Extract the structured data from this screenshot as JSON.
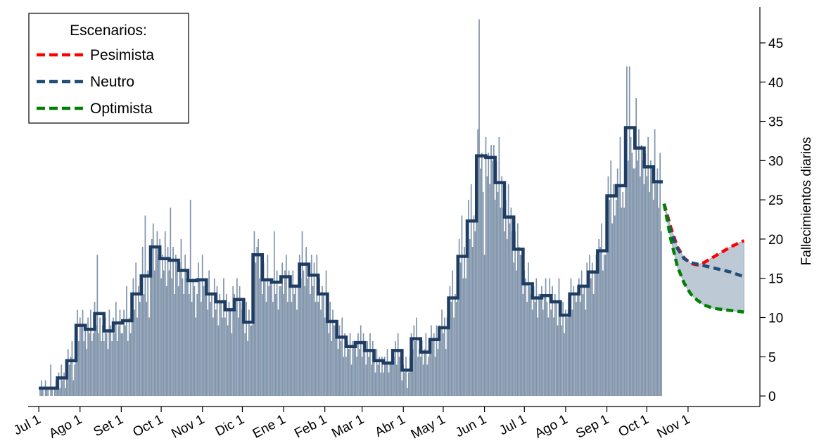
{
  "chart_data": {
    "type": "bar",
    "y_label": "Fallecimientos diarios",
    "xlim": [
      -8,
      542
    ],
    "xticks": [
      {
        "value": 0,
        "label": "Jul 1"
      },
      {
        "value": 31,
        "label": "Ago 1"
      },
      {
        "value": 62,
        "label": "Set 1"
      },
      {
        "value": 92,
        "label": "Oct 1"
      },
      {
        "value": 123,
        "label": "Nov 1"
      },
      {
        "value": 153,
        "label": "Dic 1"
      },
      {
        "value": 184,
        "label": "Ene 1"
      },
      {
        "value": 215,
        "label": "Feb 1"
      },
      {
        "value": 243,
        "label": "Mar 1"
      },
      {
        "value": 274,
        "label": "Abr 1"
      },
      {
        "value": 304,
        "label": "May 1"
      },
      {
        "value": 335,
        "label": "Jun 1"
      },
      {
        "value": 365,
        "label": "Jul 1"
      },
      {
        "value": 396,
        "label": "Ago 1"
      },
      {
        "value": 427,
        "label": "Sep 1"
      },
      {
        "value": 457,
        "label": "Oct 1"
      },
      {
        "value": 488,
        "label": "Nov 1"
      }
    ],
    "ylim": [
      -1.34,
      49.57
    ],
    "yticks": [
      0,
      5,
      10,
      15,
      20,
      25,
      30,
      35,
      40,
      45
    ],
    "bar_color": "#8094ab",
    "line_color": "#1f3d63",
    "band_color": "#b3c0cf",
    "daily": [
      0,
      1,
      2,
      1,
      0,
      2,
      1,
      1,
      0,
      4,
      1,
      0,
      1,
      2,
      2,
      3,
      1,
      4,
      2,
      3,
      1,
      3,
      6,
      4,
      5,
      7,
      2,
      4,
      8,
      11,
      7,
      10,
      9,
      11,
      7,
      9,
      6,
      10,
      8,
      11,
      7,
      8,
      12,
      9,
      18,
      8,
      10,
      7,
      9,
      7,
      10,
      8,
      6,
      11,
      9,
      7,
      10,
      8,
      12,
      7,
      9,
      11,
      8,
      8,
      11,
      9,
      14,
      7,
      10,
      8,
      12,
      15,
      11,
      17,
      10,
      14,
      12,
      14,
      19,
      13,
      23,
      12,
      16,
      10,
      17,
      20,
      22,
      16,
      19,
      21,
      18,
      20,
      15,
      18,
      16,
      21,
      14,
      19,
      16,
      24,
      15,
      19,
      13,
      18,
      16,
      14,
      17,
      20,
      15,
      13,
      18,
      15,
      16,
      13,
      25,
      12,
      15,
      14,
      10,
      13,
      17,
      15,
      12,
      18,
      14,
      15,
      14,
      11,
      16,
      12,
      13,
      10,
      15,
      11,
      14,
      9,
      13,
      12,
      10,
      15,
      10,
      13,
      9,
      12,
      11,
      8,
      14,
      13,
      11,
      15,
      10,
      14,
      12,
      11,
      10,
      8,
      12,
      7,
      11,
      9,
      9,
      16,
      21,
      17,
      19,
      20,
      15,
      18,
      13,
      17,
      15,
      12,
      18,
      14,
      15,
      15,
      12,
      21,
      13,
      16,
      11,
      14,
      14,
      17,
      13,
      16,
      18,
      12,
      16,
      15,
      12,
      16,
      13,
      14,
      11,
      17,
      18,
      15,
      21,
      16,
      14,
      19,
      15,
      16,
      13,
      18,
      14,
      17,
      12,
      18,
      12,
      15,
      11,
      14,
      13,
      10,
      16,
      10,
      8,
      12,
      7,
      11,
      9,
      9,
      8,
      6,
      9,
      7,
      10,
      5,
      8,
      5,
      7,
      6,
      8,
      4,
      7,
      7,
      7,
      5,
      8,
      6,
      9,
      5,
      8,
      6,
      4,
      7,
      5,
      8,
      4,
      7,
      5,
      3,
      6,
      4,
      5,
      3,
      5,
      3,
      5,
      4,
      6,
      3,
      4,
      4,
      6,
      5,
      7,
      4,
      8,
      5,
      6,
      2,
      4,
      3,
      5,
      1,
      3,
      5,
      8,
      6,
      9,
      7,
      10,
      5,
      6,
      5,
      7,
      4,
      6,
      8,
      4,
      5,
      6,
      9,
      7,
      8,
      5,
      9,
      6,
      9,
      7,
      11,
      8,
      10,
      6,
      10,
      11,
      14,
      12,
      16,
      10,
      13,
      12,
      16,
      20,
      17,
      23,
      15,
      19,
      15,
      21,
      25,
      20,
      27,
      19,
      23,
      21,
      28,
      34,
      48,
      29,
      31,
      26,
      18,
      33,
      28,
      31,
      27,
      32,
      30,
      32,
      25,
      30,
      26,
      33,
      24,
      28,
      24,
      21,
      25,
      20,
      27,
      22,
      24,
      21,
      17,
      21,
      16,
      22,
      19,
      18,
      18,
      13,
      16,
      15,
      12,
      17,
      14,
      13,
      11,
      14,
      12,
      15,
      10,
      13,
      13,
      14,
      11,
      13,
      15,
      12,
      10,
      15,
      11,
      14,
      10,
      13,
      12,
      9,
      15,
      11,
      9,
      12,
      8,
      11,
      10,
      11,
      12,
      15,
      11,
      14,
      13,
      12,
      14,
      15,
      12,
      16,
      13,
      14,
      11,
      17,
      14,
      18,
      15,
      17,
      13,
      16,
      18,
      17,
      20,
      19,
      22,
      16,
      18,
      18,
      23,
      28,
      25,
      30,
      22,
      27,
      23,
      25,
      29,
      27,
      33,
      24,
      26,
      24,
      32,
      42,
      30,
      42,
      33,
      31,
      29,
      29,
      38,
      30,
      34,
      28,
      32,
      30,
      27,
      31,
      28,
      33,
      26,
      30,
      29,
      25,
      34,
      27,
      29,
      24,
      31,
      21
    ],
    "weekly": [
      1,
      1,
      2.3,
      4.5,
      9,
      8.5,
      10.5,
      8.3,
      9.3,
      9.6,
      13,
      15.3,
      19,
      17.5,
      17.3,
      16,
      14.7,
      14.8,
      13,
      12,
      11,
      12.3,
      9.4,
      18,
      14.8,
      14.5,
      15.2,
      14,
      16.8,
      15.4,
      13,
      9.5,
      7.5,
      6.3,
      6.8,
      5.8,
      4.5,
      4.2,
      5.8,
      3.3,
      7.3,
      5.6,
      7.2,
      8.7,
      12.5,
      17.8,
      22.3,
      30.6,
      30.4,
      27.2,
      22.8,
      18.7,
      14.3,
      12.5,
      12.8,
      12,
      10.3,
      13,
      14,
      15.8,
      18.5,
      25.5,
      26.8,
      34.2,
      31.6,
      29.2,
      27.3
    ],
    "legend_title": "Escenarios:",
    "legend_position": "upper left",
    "forecast_x": [
      470,
      475,
      480,
      485,
      490,
      495,
      500,
      505,
      510,
      515,
      520,
      525,
      530
    ],
    "series": [
      {
        "name": "Pesimista",
        "color": "#ff0000",
        "values": [
          24.5,
          21.5,
          19,
          17.6,
          16.9,
          16.7,
          17,
          17.5,
          18,
          18.5,
          19,
          19.4,
          19.8
        ]
      },
      {
        "name": "Neutro",
        "color": "#1f4e79",
        "values": [
          24.5,
          21,
          18.8,
          17.5,
          17,
          16.8,
          16.6,
          16.4,
          16.2,
          16,
          15.8,
          15.5,
          15.2
        ]
      },
      {
        "name": "Optimista",
        "color": "#008000",
        "values": [
          24.5,
          20,
          16.5,
          14.4,
          13,
          12.2,
          11.6,
          11.3,
          11.1,
          11,
          10.9,
          10.8,
          10.7
        ]
      }
    ]
  }
}
